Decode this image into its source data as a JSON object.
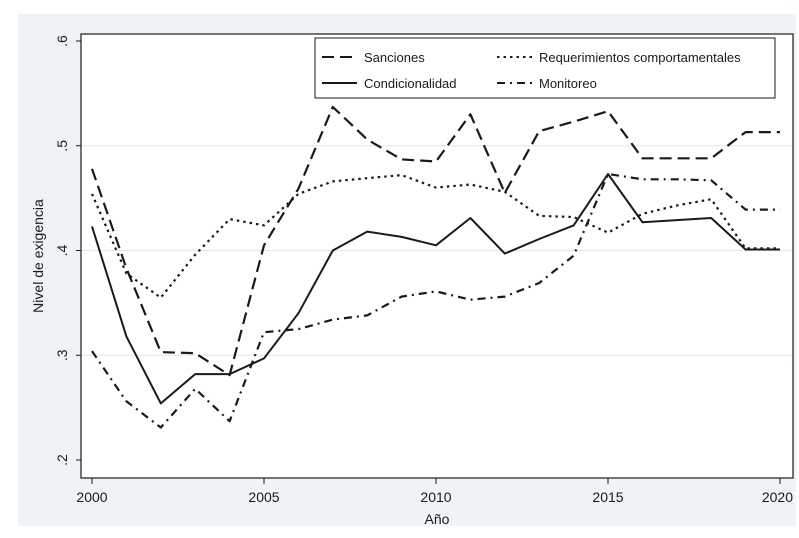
{
  "chart_data": {
    "type": "line",
    "title": "",
    "xlabel": "Año",
    "ylabel": "Nivel de exigencia",
    "xlim": [
      2000,
      2020
    ],
    "ylim": [
      0.2,
      0.6
    ],
    "x_ticks": [
      "2000",
      "2005",
      "2010",
      "2015",
      "2020"
    ],
    "y_ticks": [
      ".2",
      ".3",
      ".4",
      ".5",
      ".6"
    ],
    "grid": true,
    "legend_position": "top-right",
    "x": [
      2000,
      2001,
      2002,
      2003,
      2004,
      2005,
      2006,
      2007,
      2008,
      2009,
      2010,
      2011,
      2012,
      2013,
      2014,
      2015,
      2016,
      2017,
      2018,
      2019,
      2020
    ],
    "series": [
      {
        "name": "Sanciones",
        "style": "dashed",
        "color": "#1a1a1a",
        "values": [
          0.478,
          0.383,
          0.303,
          0.302,
          0.281,
          0.405,
          0.459,
          0.537,
          0.506,
          0.487,
          0.485,
          0.53,
          0.455,
          0.514,
          0.523,
          0.533,
          0.488,
          0.488,
          0.488,
          0.513,
          0.513
        ]
      },
      {
        "name": "Requerimientos comportamentales",
        "style": "dotted",
        "color": "#1a1a1a",
        "values": [
          0.454,
          0.378,
          0.355,
          0.396,
          0.43,
          0.424,
          0.454,
          0.466,
          0.469,
          0.472,
          0.46,
          0.463,
          0.456,
          0.433,
          0.432,
          0.417,
          0.435,
          0.443,
          0.449,
          0.402,
          0.402
        ]
      },
      {
        "name": "Condicionalidad",
        "style": "solid",
        "color": "#1a1a1a",
        "values": [
          0.423,
          0.318,
          0.254,
          0.282,
          0.282,
          0.297,
          0.34,
          0.4,
          0.418,
          0.413,
          0.405,
          0.431,
          0.397,
          0.411,
          0.424,
          0.473,
          0.427,
          0.429,
          0.431,
          0.401,
          0.401
        ]
      },
      {
        "name": "Monitoreo",
        "style": "dashdot",
        "color": "#1a1a1a",
        "values": [
          0.304,
          0.256,
          0.231,
          0.268,
          0.237,
          0.322,
          0.325,
          0.334,
          0.338,
          0.356,
          0.361,
          0.353,
          0.356,
          0.369,
          0.395,
          0.473,
          0.468,
          0.468,
          0.467,
          0.439,
          0.439
        ]
      }
    ]
  }
}
